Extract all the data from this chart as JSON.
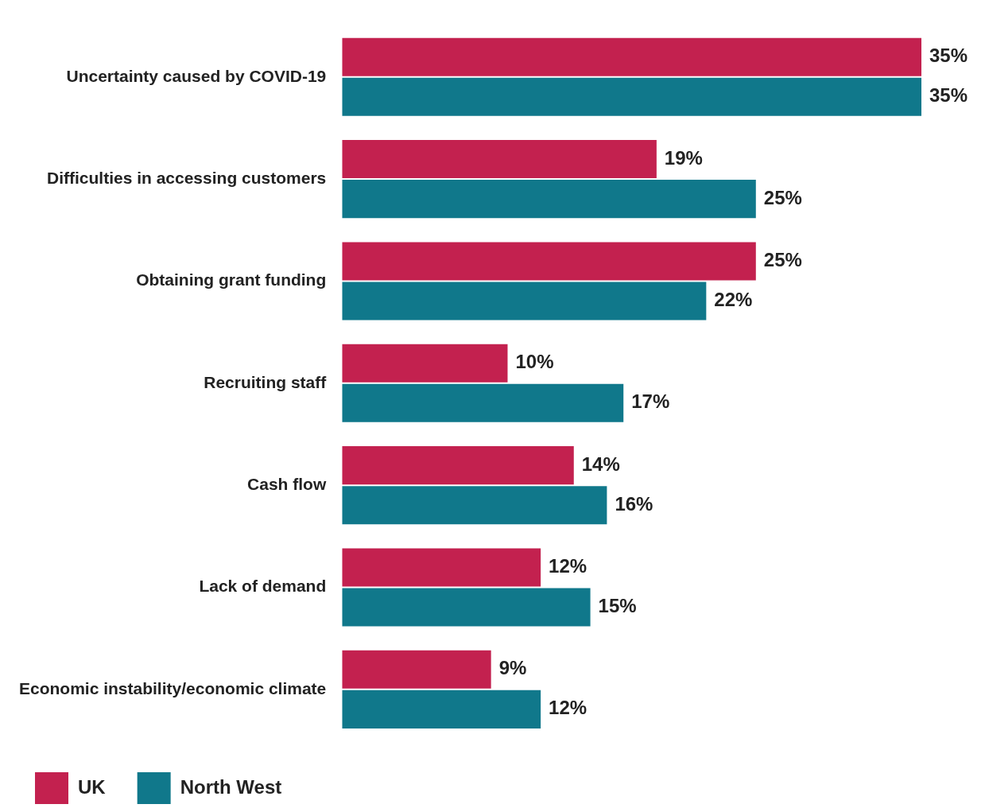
{
  "chart_data": {
    "type": "bar",
    "orientation": "horizontal",
    "legend": "bottom",
    "grid": false,
    "tick_labels": "y",
    "categories": [
      "Uncertainty caused by COVID-19",
      "Difficulties in accessing customers",
      "Obtaining grant funding",
      "Recruiting staff",
      "Cash flow",
      "Lack of demand",
      "Economic instability/economic climate"
    ],
    "series": [
      {
        "name": "UK",
        "color": "#c3214f",
        "values": [
          35,
          19,
          25,
          10,
          14,
          12,
          9
        ],
        "value_labels": [
          "35%",
          "19%",
          "25%",
          "10%",
          "14%",
          "12%",
          "9%"
        ]
      },
      {
        "name": "North West",
        "color": "#10788b",
        "values": [
          35,
          25,
          22,
          17,
          16,
          15,
          12
        ],
        "value_labels": [
          "35%",
          "25%",
          "22%",
          "17%",
          "16%",
          "15%",
          "12%"
        ]
      }
    ]
  }
}
